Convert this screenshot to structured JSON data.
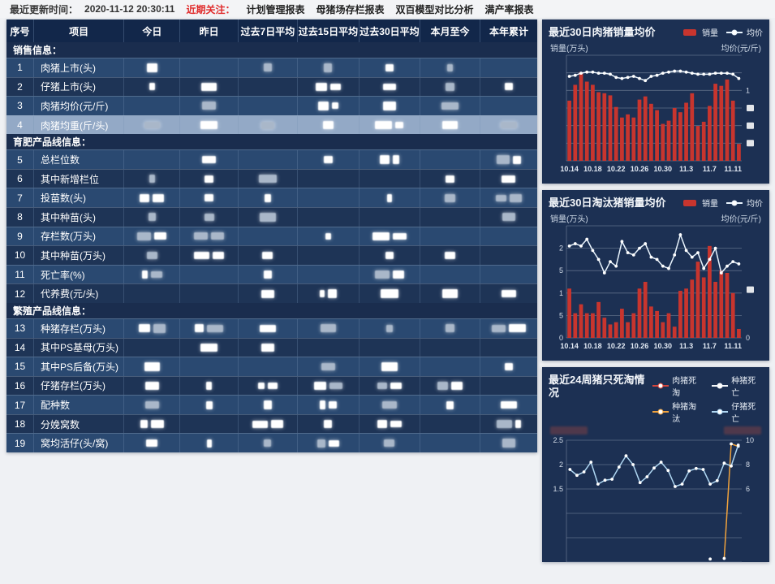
{
  "topbar": {
    "updated_label": "最近更新时间：",
    "updated_time": "2020-11-12 20:30:11",
    "focus_label": "近期关注：",
    "menu": [
      "计划管理报表",
      "母猪场存栏报表",
      "双百模型对比分析",
      "满产率报表"
    ]
  },
  "table": {
    "columns": [
      "序号",
      "项目",
      "今日",
      "昨日",
      "过去7日平均",
      "过去15日平均",
      "过去30日平均",
      "本月至今",
      "本年累计"
    ],
    "values_redacted": true,
    "rows": [
      {
        "type": "section",
        "label": "销售信息："
      },
      {
        "type": "data",
        "no": "1",
        "label": "肉猪上市(头)"
      },
      {
        "type": "data",
        "no": "2",
        "label": "仔猪上市(头)"
      },
      {
        "type": "data",
        "no": "3",
        "label": "肉猪均价(元/斤)"
      },
      {
        "type": "data",
        "no": "4",
        "label": "肉猪均重(斤/头)",
        "highlight": true
      },
      {
        "type": "section",
        "label": "育肥产品线信息："
      },
      {
        "type": "data",
        "no": "5",
        "label": "总栏位数"
      },
      {
        "type": "data",
        "no": "6",
        "label": "其中新增栏位"
      },
      {
        "type": "data",
        "no": "7",
        "label": "投苗数(头)"
      },
      {
        "type": "data",
        "no": "8",
        "label": "其中种苗(头)"
      },
      {
        "type": "data",
        "no": "9",
        "label": "存栏数(万头)"
      },
      {
        "type": "data",
        "no": "10",
        "label": "其中种苗(万头)"
      },
      {
        "type": "data",
        "no": "11",
        "label": "死亡率(%)"
      },
      {
        "type": "data",
        "no": "12",
        "label": "代养费(元/头)"
      },
      {
        "type": "section",
        "label": "繁殖产品线信息："
      },
      {
        "type": "data",
        "no": "13",
        "label": "种猪存栏(万头)"
      },
      {
        "type": "data",
        "no": "14",
        "label": "其中PS基母(万头)"
      },
      {
        "type": "data",
        "no": "15",
        "label": "其中PS后备(万头)"
      },
      {
        "type": "data",
        "no": "16",
        "label": "仔猪存栏(万头)"
      },
      {
        "type": "data",
        "no": "17",
        "label": "配种数"
      },
      {
        "type": "data",
        "no": "18",
        "label": "分娩窝数"
      },
      {
        "type": "data",
        "no": "19",
        "label": "窝均活仔(头/窝)"
      }
    ]
  },
  "chart_data": [
    {
      "type": "bar",
      "title": "最近30日肉猪销量均价",
      "legend": [
        {
          "label": "销量",
          "type": "bar",
          "color": "#c8352e"
        },
        {
          "label": "均价",
          "type": "line",
          "color": "#e9f4fd"
        }
      ],
      "y_left_title": "销量(万头)",
      "y_right_title": "均价(元/斤)",
      "x_labels": [
        "10.14",
        "10.18",
        "10.22",
        "10.26",
        "10.30",
        "11.3",
        "11.7",
        "11.11"
      ],
      "x_label_every": 4,
      "ylim": [
        0,
        100
      ],
      "grid_divisions": 6,
      "y_ticks_redacted": true,
      "bars": [
        57,
        72,
        84,
        75,
        72,
        65,
        64,
        62,
        51,
        41,
        44,
        41,
        58,
        61,
        54,
        48,
        35,
        38,
        50,
        46,
        55,
        64,
        33,
        37,
        52,
        73,
        71,
        77,
        57,
        16
      ],
      "line": [
        80,
        81,
        83,
        84,
        84,
        83,
        83,
        82,
        79,
        78,
        79,
        80,
        78,
        76,
        80,
        81,
        83,
        84,
        85,
        85,
        84,
        83,
        82,
        82,
        82,
        83,
        83,
        83,
        82,
        78
      ],
      "left_ticks": [],
      "right_ticks": [
        {
          "frac": 0.333,
          "display": "1"
        },
        {
          "frac": 0.5
        },
        {
          "frac": 0.667
        },
        {
          "frac": 0.833
        }
      ]
    },
    {
      "type": "bar",
      "title": "最近30日淘汰猪销量均价",
      "legend": [
        {
          "label": "销量",
          "type": "bar",
          "color": "#c8352e"
        },
        {
          "label": "均价",
          "type": "line",
          "color": "#e9f4fd"
        }
      ],
      "y_left_title": "销量(万头)",
      "y_right_title": "均价(元/斤)",
      "x_labels": [
        "10.14",
        "10.18",
        "10.22",
        "10.26",
        "10.30",
        "11.3",
        "11.7",
        "11.11"
      ],
      "x_label_every": 4,
      "ylim": [
        0,
        2.5
      ],
      "grid_divisions": 5,
      "bars": [
        1.1,
        0.55,
        0.75,
        0.55,
        0.55,
        0.8,
        0.45,
        0.3,
        0.35,
        0.65,
        0.35,
        0.55,
        1.1,
        1.25,
        0.7,
        0.6,
        0.35,
        0.55,
        0.25,
        1.05,
        1.1,
        1.3,
        1.7,
        1.35,
        2.05,
        1.25,
        1.5,
        1.45,
        1.0,
        0.2
      ],
      "line": [
        2.05,
        2.1,
        2.05,
        2.2,
        1.95,
        1.75,
        1.45,
        1.7,
        1.6,
        2.15,
        1.9,
        1.85,
        2.0,
        2.1,
        1.8,
        1.75,
        1.6,
        1.55,
        1.85,
        2.3,
        1.95,
        1.8,
        1.9,
        1.55,
        1.75,
        2.0,
        1.45,
        1.6,
        1.7,
        1.65
      ],
      "left_ticks": [
        {
          "frac": 0.2,
          "value": "2",
          "display": "2"
        },
        {
          "frac": 0.4,
          "value": "1.5",
          "display": "5"
        },
        {
          "frac": 0.6,
          "value": "1",
          "display": "1"
        },
        {
          "frac": 0.8,
          "value": "0.5",
          "display": "5"
        },
        {
          "frac": 1.0,
          "value": "0",
          "display": "0"
        }
      ],
      "right_ticks": [
        {
          "frac": 0.57
        },
        {
          "frac": 1.0,
          "display": "0"
        }
      ]
    },
    {
      "type": "line",
      "title": "最近24周猪只死淘情况",
      "legend": [
        {
          "label": "肉猪死淘",
          "type": "line",
          "color": "#d5453c"
        },
        {
          "label": "种猪死亡",
          "type": "line",
          "color": "#f3f6f9"
        },
        {
          "label": "种猪淘汰",
          "type": "line",
          "color": "#f0a23c"
        },
        {
          "label": "仔猪死亡",
          "type": "line",
          "color": "#aed6f2"
        }
      ],
      "y_left_title_redacted": true,
      "y_right_title_redacted": true,
      "ylim": [
        0,
        2.5
      ],
      "ylim_right": [
        0,
        10
      ],
      "grid_divisions": 5,
      "left_ticks": [
        {
          "frac": 0.0,
          "display": "2.5"
        },
        {
          "frac": 0.2,
          "display": "2"
        },
        {
          "frac": 0.4,
          "display": "1.5"
        }
      ],
      "right_ticks": [
        {
          "frac": 0.0,
          "display": "10"
        },
        {
          "frac": 0.2,
          "display": "8"
        },
        {
          "frac": 0.4,
          "display": "6"
        }
      ],
      "series": [
        {
          "name": "肉猪死淘",
          "color": "#d5453c",
          "axis": "left",
          "values": []
        },
        {
          "name": "种猪死亡",
          "color": "#f3f6f9",
          "axis": "left",
          "values": []
        },
        {
          "name": "种猪淘汰",
          "color": "#f0a23c",
          "axis": "right",
          "values": [
            null,
            null,
            null,
            null,
            null,
            null,
            null,
            null,
            null,
            null,
            null,
            null,
            null,
            null,
            null,
            null,
            null,
            null,
            null,
            null,
            0.25,
            null,
            0.3,
            9.7,
            9.5
          ]
        },
        {
          "name": "仔猪死亡",
          "color": "#aed6f2",
          "axis": "left",
          "values": [
            1.9,
            1.78,
            1.85,
            2.05,
            1.6,
            1.68,
            1.7,
            1.95,
            2.18,
            2.0,
            1.63,
            1.75,
            1.93,
            2.05,
            1.88,
            1.55,
            1.6,
            1.87,
            1.92,
            1.9,
            1.6,
            1.67,
            2.03,
            1.97,
            2.4
          ]
        }
      ]
    }
  ]
}
